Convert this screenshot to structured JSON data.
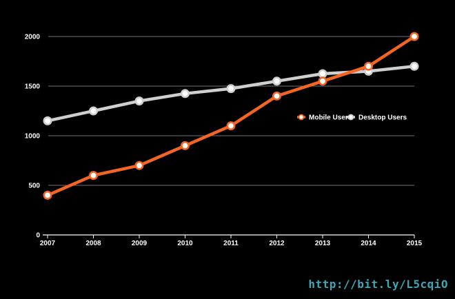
{
  "chart_data": {
    "type": "line",
    "x": [
      "2007",
      "2008",
      "2009",
      "2010",
      "2011",
      "2012",
      "2013",
      "2014",
      "2015"
    ],
    "series": [
      {
        "name": "Mobile Users",
        "color": "#f26522",
        "values": [
          400,
          600,
          700,
          900,
          1100,
          1400,
          1550,
          1700,
          2000
        ]
      },
      {
        "name": "Desktop Users",
        "color": "#cfcfcf",
        "values": [
          1150,
          1250,
          1350,
          1425,
          1475,
          1550,
          1625,
          1650,
          1700
        ]
      }
    ],
    "yticks": [
      0,
      500,
      1000,
      1500,
      2000
    ],
    "ylim": [
      0,
      2000
    ],
    "grid": true,
    "legend_position": "right"
  },
  "footer": {
    "url": "http://bit.ly/L5cqiO",
    "url_color": "#3ea6b4"
  },
  "colors": {
    "background": "#000000",
    "text": "#ffffff",
    "grid": "#9a9a9a"
  }
}
